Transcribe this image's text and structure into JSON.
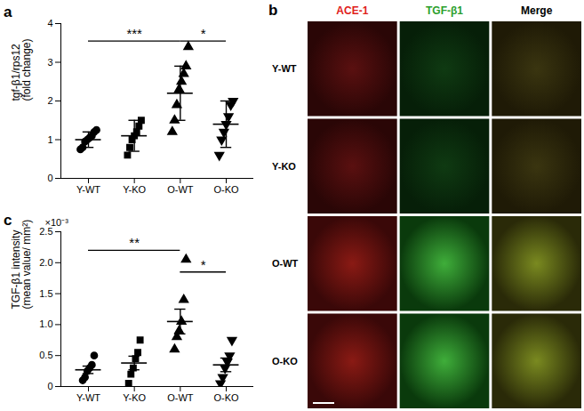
{
  "chart_data": [
    {
      "type": "scatter",
      "panel_label": "a",
      "y_label": "tgf-β1/rps12\n(fold change)",
      "categories": [
        "Y-WT",
        "Y-KO",
        "O-WT",
        "O-KO"
      ],
      "color": "#000000",
      "groups": [
        {
          "marker": "circle",
          "values": [
            0.75,
            0.8,
            0.95,
            1.0,
            1.05,
            1.1,
            1.2,
            1.25
          ],
          "mean": 1.0,
          "sd": 0.2
        },
        {
          "marker": "square",
          "values": [
            0.6,
            0.8,
            1.0,
            1.1,
            1.2,
            1.35,
            1.5
          ],
          "mean": 1.1,
          "sd": 0.4
        },
        {
          "marker": "triangle",
          "values": [
            1.2,
            1.5,
            1.9,
            2.3,
            2.5,
            2.7,
            2.9,
            3.4
          ],
          "mean": 2.2,
          "sd": 0.7
        },
        {
          "marker": "triangle-down",
          "values": [
            0.6,
            1.0,
            1.2,
            1.4,
            1.6,
            1.9,
            2.0
          ],
          "mean": 1.4,
          "sd": 0.6
        }
      ],
      "ylim": [
        0,
        4
      ],
      "yticks": [
        0,
        1,
        2,
        3,
        4
      ],
      "annotations": [
        {
          "from": "Y-WT",
          "to": "O-WT",
          "y": 3.55,
          "label": "***"
        },
        {
          "from": "O-WT",
          "to": "O-KO",
          "y": 3.55,
          "label": "*"
        }
      ]
    },
    {
      "type": "scatter",
      "panel_label": "c",
      "y_label": "TGF-β1 intensity\n(mean value/ mm²)",
      "y_multiplier": "×10⁻³",
      "categories": [
        "Y-WT",
        "Y-KO",
        "O-WT",
        "O-KO"
      ],
      "color": "#000000",
      "groups": [
        {
          "marker": "circle",
          "values": [
            0.1,
            0.15,
            0.25,
            0.3,
            0.35,
            0.5
          ],
          "mean": 0.27,
          "sem": 0.06
        },
        {
          "marker": "square",
          "values": [
            0.05,
            0.2,
            0.3,
            0.45,
            0.55,
            0.75
          ],
          "mean": 0.38,
          "sem": 0.11
        },
        {
          "marker": "triangle",
          "values": [
            0.6,
            0.8,
            0.9,
            1.05,
            1.4,
            2.05
          ],
          "mean": 1.05,
          "sem": 0.2
        },
        {
          "marker": "triangle-down",
          "values": [
            0.05,
            0.15,
            0.3,
            0.4,
            0.5,
            0.75
          ],
          "mean": 0.35,
          "sem": 0.11
        }
      ],
      "ylim": [
        0,
        2.5
      ],
      "yticks": [
        0,
        0.5,
        {
          "value": 1,
          "label": "1.0"
        },
        1.5,
        {
          "value": 2,
          "label": "2.0"
        },
        2.5
      ],
      "annotations": [
        {
          "from": "Y-WT",
          "to": "O-WT",
          "y": 2.2,
          "label": "**"
        },
        {
          "from": "O-WT",
          "to": "O-KO",
          "y": 1.85,
          "label": "*"
        }
      ]
    }
  ],
  "figure": {
    "panel_label": "b",
    "columns": [
      {
        "label": "ACE-1",
        "color": "#e0201a"
      },
      {
        "label": "TGF-β1",
        "color": "#2ca02c"
      },
      {
        "label": "Merge",
        "color": "#000000"
      }
    ],
    "rows": [
      "Y-WT",
      "Y-KO",
      "O-WT",
      "O-KO"
    ]
  }
}
